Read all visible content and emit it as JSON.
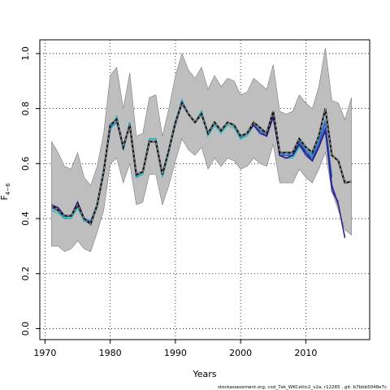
{
  "chart_data": {
    "type": "line",
    "xlabel": "Years",
    "ylabel": "F",
    "ylabel_sub": "4−6",
    "xlim": [
      1969.2,
      2019.8
    ],
    "ylim": [
      -0.04,
      1.05
    ],
    "x_ticks": [
      1970,
      1980,
      1990,
      2000,
      2010
    ],
    "y_ticks": [
      0.0,
      0.2,
      0.4,
      0.6,
      0.8,
      1.0
    ],
    "x_tick_labels": [
      "1970",
      "1980",
      "1990",
      "2000",
      "2010"
    ],
    "y_tick_labels": [
      "0.0",
      "0.2",
      "0.4",
      "0.6",
      "0.8",
      "1.0"
    ],
    "grid": true,
    "colors": {
      "band": "#bebebe",
      "band_edge": "#7a7a7a",
      "main": "#111111",
      "dashed": "#9a9a9a",
      "retro": [
        "#2b1d8a",
        "#3b3fb0",
        "#2f64c2",
        "#2a85c8",
        "#25a3c4",
        "#3cb9c4"
      ]
    },
    "band": {
      "x": [
        1971,
        1972,
        1973,
        1974,
        1975,
        1976,
        1977,
        1978,
        1979,
        1980,
        1981,
        1982,
        1983,
        1984,
        1985,
        1986,
        1987,
        1988,
        1989,
        1990,
        1991,
        1992,
        1993,
        1994,
        1995,
        1996,
        1997,
        1998,
        1999,
        2000,
        2001,
        2002,
        2003,
        2004,
        2005,
        2006,
        2007,
        2008,
        2009,
        2010,
        2011,
        2012,
        2013,
        2014,
        2015,
        2016,
        2017
      ],
      "upper": [
        0.68,
        0.64,
        0.59,
        0.58,
        0.64,
        0.55,
        0.52,
        0.59,
        0.71,
        0.92,
        0.95,
        0.8,
        0.93,
        0.7,
        0.71,
        0.84,
        0.85,
        0.7,
        0.8,
        0.92,
        1.0,
        0.94,
        0.91,
        0.95,
        0.87,
        0.92,
        0.88,
        0.91,
        0.9,
        0.85,
        0.86,
        0.91,
        0.89,
        0.87,
        0.96,
        0.79,
        0.78,
        0.79,
        0.85,
        0.82,
        0.8,
        0.88,
        1.02,
        0.83,
        0.82,
        0.76,
        0.84
      ],
      "lower": [
        0.3,
        0.3,
        0.28,
        0.29,
        0.32,
        0.29,
        0.28,
        0.35,
        0.43,
        0.6,
        0.62,
        0.53,
        0.6,
        0.45,
        0.46,
        0.56,
        0.56,
        0.45,
        0.52,
        0.61,
        0.69,
        0.65,
        0.63,
        0.66,
        0.58,
        0.62,
        0.59,
        0.62,
        0.61,
        0.58,
        0.59,
        0.62,
        0.6,
        0.59,
        0.67,
        0.53,
        0.53,
        0.53,
        0.58,
        0.55,
        0.53,
        0.58,
        0.64,
        0.5,
        0.43,
        0.36,
        0.34
      ]
    },
    "series": [
      {
        "x": [
          1971,
          1972,
          1973,
          1974,
          1975,
          1976,
          1977,
          1978,
          1979,
          1980,
          1981,
          1982,
          1983,
          1984,
          1985,
          1986,
          1987,
          1988,
          1989,
          1990,
          1991,
          1992,
          1993,
          1994,
          1995,
          1996,
          1997,
          1998,
          1999,
          2000,
          2001,
          2002,
          2003,
          2004,
          2005,
          2006,
          2007,
          2008,
          2009,
          2010,
          2011,
          2012,
          2013,
          2014,
          2015,
          2016,
          2017
        ],
        "y": [
          0.45,
          0.43,
          0.41,
          0.41,
          0.45,
          0.4,
          0.38,
          0.45,
          0.57,
          0.74,
          0.76,
          0.66,
          0.74,
          0.56,
          0.57,
          0.68,
          0.68,
          0.56,
          0.65,
          0.75,
          0.82,
          0.78,
          0.75,
          0.78,
          0.71,
          0.75,
          0.72,
          0.75,
          0.74,
          0.7,
          0.71,
          0.75,
          0.73,
          0.71,
          0.79,
          0.64,
          0.64,
          0.64,
          0.69,
          0.66,
          0.64,
          0.7,
          0.8,
          0.63,
          0.61,
          0.53,
          0.535
        ],
        "style": "main"
      },
      {
        "x": [
          1971,
          1972,
          1973,
          1974,
          1975,
          1976,
          1977,
          1978,
          1979,
          1980,
          1981,
          1982,
          1983,
          1984,
          1985,
          1986,
          1987,
          1988,
          1989,
          1990,
          1991,
          1992,
          1993,
          1994,
          1995,
          1996,
          1997,
          1998,
          1999,
          2000,
          2001,
          2002,
          2003,
          2004,
          2005,
          2006,
          2007,
          2008,
          2009,
          2010,
          2011,
          2012,
          2013,
          2014,
          2015,
          2016
        ],
        "y": [
          0.45,
          0.44,
          0.41,
          0.41,
          0.46,
          0.4,
          0.38,
          0.45,
          0.57,
          0.74,
          0.76,
          0.66,
          0.74,
          0.56,
          0.57,
          0.68,
          0.68,
          0.56,
          0.65,
          0.75,
          0.82,
          0.78,
          0.75,
          0.78,
          0.71,
          0.75,
          0.72,
          0.75,
          0.74,
          0.7,
          0.71,
          0.74,
          0.71,
          0.7,
          0.77,
          0.63,
          0.62,
          0.63,
          0.67,
          0.64,
          0.61,
          0.66,
          0.72,
          0.52,
          0.45,
          0.33
        ],
        "style": "retro"
      },
      {
        "x": [
          1971,
          1972,
          1973,
          1974,
          1975,
          1976,
          1977,
          1978,
          1979,
          1980,
          1981,
          1982,
          1983,
          1984,
          1985,
          1986,
          1987,
          1988,
          1989,
          1990,
          1991,
          1992,
          1993,
          1994,
          1995,
          1996,
          1997,
          1998,
          1999,
          2000,
          2001,
          2002,
          2003,
          2004,
          2005,
          2006,
          2007,
          2008,
          2009,
          2010,
          2011,
          2012,
          2013,
          2014,
          2015
        ],
        "y": [
          0.45,
          0.43,
          0.41,
          0.41,
          0.45,
          0.4,
          0.38,
          0.45,
          0.57,
          0.74,
          0.76,
          0.66,
          0.74,
          0.56,
          0.57,
          0.68,
          0.68,
          0.56,
          0.65,
          0.75,
          0.82,
          0.78,
          0.75,
          0.78,
          0.71,
          0.75,
          0.72,
          0.75,
          0.74,
          0.7,
          0.71,
          0.74,
          0.71,
          0.7,
          0.77,
          0.63,
          0.62,
          0.63,
          0.67,
          0.63,
          0.61,
          0.66,
          0.73,
          0.5,
          0.46
        ],
        "style": "retro"
      },
      {
        "x": [
          1971,
          1972,
          1973,
          1974,
          1975,
          1976,
          1977,
          1978,
          1979,
          1980,
          1981,
          1982,
          1983,
          1984,
          1985,
          1986,
          1987,
          1988,
          1989,
          1990,
          1991,
          1992,
          1993,
          1994,
          1995,
          1996,
          1997,
          1998,
          1999,
          2000,
          2001,
          2002,
          2003,
          2004,
          2005,
          2006,
          2007,
          2008,
          2009,
          2010,
          2011,
          2012,
          2013,
          2014
        ],
        "y": [
          0.44,
          0.43,
          0.41,
          0.41,
          0.45,
          0.4,
          0.39,
          0.45,
          0.57,
          0.74,
          0.76,
          0.66,
          0.74,
          0.56,
          0.57,
          0.68,
          0.68,
          0.56,
          0.65,
          0.75,
          0.82,
          0.78,
          0.75,
          0.78,
          0.71,
          0.75,
          0.72,
          0.75,
          0.74,
          0.7,
          0.71,
          0.74,
          0.72,
          0.7,
          0.78,
          0.63,
          0.63,
          0.63,
          0.68,
          0.64,
          0.62,
          0.67,
          0.75,
          0.55
        ],
        "style": "retro"
      },
      {
        "x": [
          1971,
          1972,
          1973,
          1974,
          1975,
          1976,
          1977,
          1978,
          1979,
          1980,
          1981,
          1982,
          1983,
          1984,
          1985,
          1986,
          1987,
          1988,
          1989,
          1990,
          1991,
          1992,
          1993,
          1994,
          1995,
          1996,
          1997,
          1998,
          1999,
          2000,
          2001,
          2002,
          2003,
          2004,
          2005,
          2006,
          2007,
          2008,
          2009,
          2010,
          2011,
          2012,
          2013
        ],
        "y": [
          0.44,
          0.43,
          0.41,
          0.41,
          0.45,
          0.4,
          0.39,
          0.45,
          0.57,
          0.73,
          0.75,
          0.66,
          0.74,
          0.56,
          0.57,
          0.68,
          0.68,
          0.56,
          0.65,
          0.74,
          0.82,
          0.78,
          0.75,
          0.78,
          0.71,
          0.75,
          0.72,
          0.75,
          0.74,
          0.7,
          0.71,
          0.74,
          0.72,
          0.71,
          0.78,
          0.64,
          0.63,
          0.64,
          0.68,
          0.65,
          0.63,
          0.68,
          0.76
        ],
        "style": "retro"
      },
      {
        "x": [
          1971,
          1972,
          1973,
          1974,
          1975,
          1976,
          1977,
          1978,
          1979,
          1980,
          1981,
          1982,
          1983,
          1984,
          1985,
          1986,
          1987,
          1988,
          1989,
          1990,
          1991,
          1992,
          1993,
          1994,
          1995,
          1996,
          1997,
          1998,
          1999,
          2000,
          2001,
          2002,
          2003,
          2004,
          2005,
          2006,
          2007,
          2008,
          2009,
          2010,
          2011,
          2012
        ],
        "y": [
          0.44,
          0.43,
          0.4,
          0.41,
          0.45,
          0.4,
          0.39,
          0.45,
          0.58,
          0.73,
          0.77,
          0.65,
          0.75,
          0.55,
          0.57,
          0.69,
          0.69,
          0.56,
          0.65,
          0.75,
          0.83,
          0.78,
          0.75,
          0.79,
          0.71,
          0.75,
          0.72,
          0.75,
          0.74,
          0.69,
          0.71,
          0.74,
          0.72,
          0.71,
          0.78,
          0.63,
          0.63,
          0.63,
          0.67,
          0.65,
          0.62,
          0.68
        ],
        "style": "retro"
      },
      {
        "x": [
          1971,
          1972,
          1973,
          1974,
          1975,
          1976,
          1977,
          1978,
          1979,
          1980,
          1981,
          1982,
          1983,
          1984,
          1985,
          1986,
          1987,
          1988,
          1989,
          1990,
          1991,
          1992,
          1993,
          1994,
          1995,
          1996,
          1997,
          1998,
          1999,
          2000,
          2001,
          2002,
          2003,
          2004,
          2005,
          2006,
          2007,
          2008,
          2009,
          2010,
          2011
        ],
        "y": [
          0.43,
          0.42,
          0.4,
          0.4,
          0.44,
          0.39,
          0.39,
          0.44,
          0.58,
          0.72,
          0.77,
          0.65,
          0.75,
          0.55,
          0.56,
          0.69,
          0.69,
          0.55,
          0.64,
          0.75,
          0.83,
          0.78,
          0.75,
          0.79,
          0.7,
          0.74,
          0.71,
          0.74,
          0.73,
          0.69,
          0.7,
          0.74,
          0.72,
          0.7,
          0.77,
          0.63,
          0.62,
          0.62,
          0.66,
          0.64,
          0.62
        ],
        "style": "retro"
      }
    ],
    "footer": "stockassessment.org, cod_7ek_WKCeltic2_v2a, r12265 , git: b7bbb5048e7c"
  }
}
